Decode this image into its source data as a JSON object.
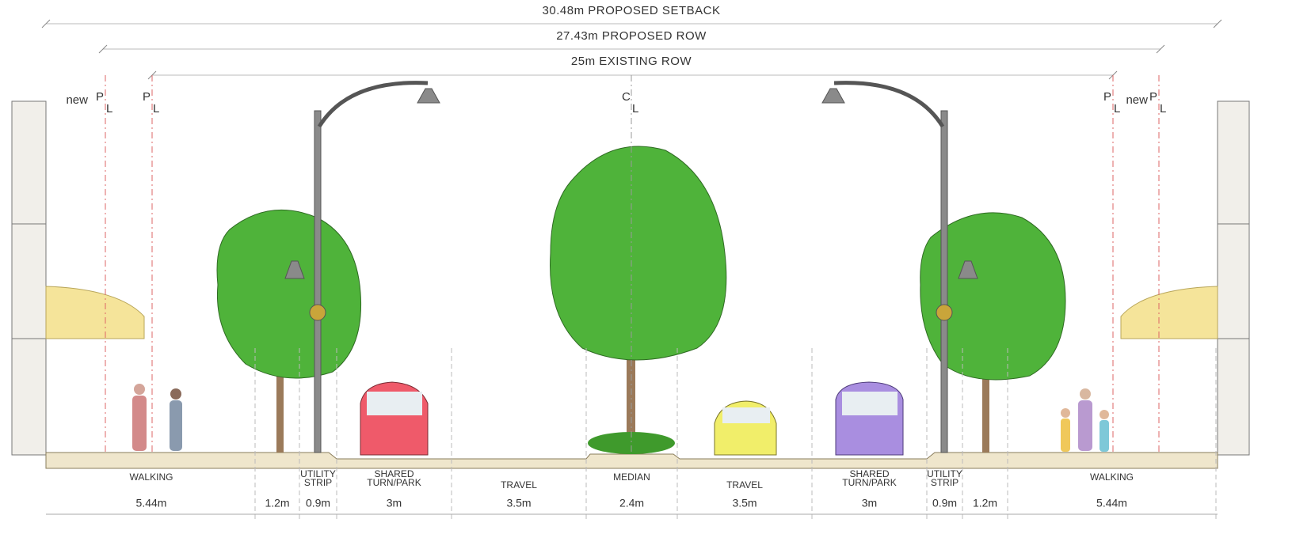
{
  "dimensions": [
    {
      "label": "30.48m PROPOSED SETBACK"
    },
    {
      "label": "27.43m PROPOSED ROW"
    },
    {
      "label": "25m EXISTING ROW"
    }
  ],
  "reference_lines": [
    {
      "prefix": "new",
      "letter": "P",
      "sub": "L"
    },
    {
      "letter": "P",
      "sub": "L"
    },
    {
      "letter": "C",
      "sub": "L"
    },
    {
      "letter": "P",
      "sub": "L"
    },
    {
      "prefix": "new",
      "letter": "P",
      "sub": "L"
    }
  ],
  "zones": [
    {
      "label": [
        "WALKING"
      ],
      "width": "5.44m"
    },
    {
      "width": "1.2m"
    },
    {
      "label": [
        "UTILITY",
        "STRIP"
      ],
      "width": "0.9m"
    },
    {
      "label": [
        "SHARED",
        "TURN/PARK"
      ],
      "width": "3m"
    },
    {
      "label": [
        "TRAVEL"
      ],
      "width": "3.5m"
    },
    {
      "label": [
        "MEDIAN"
      ],
      "width": "2.4m"
    },
    {
      "label": [
        "TRAVEL"
      ],
      "width": "3.5m"
    },
    {
      "label": [
        "SHARED",
        "TURN/PARK"
      ],
      "width": "3m"
    },
    {
      "label": [
        "UTILITY",
        "STRIP"
      ],
      "width": "0.9m"
    },
    {
      "width": "1.2m"
    },
    {
      "label": [
        "WALKING"
      ],
      "width": "5.44m"
    }
  ]
}
